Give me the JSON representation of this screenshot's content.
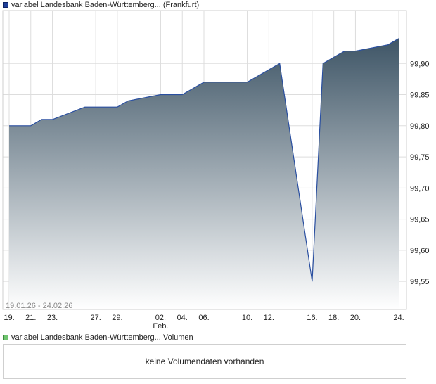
{
  "legend": {
    "price_label": "variabel Landesbank Baden-Württemberg... (Frankfurt)",
    "volume_label": "variabel Landesbank Baden-Württemberg... Volumen"
  },
  "volume": {
    "message": "keine Volumendaten vorhanden"
  },
  "colors": {
    "line": "#2a4fa0",
    "fill_top": "#3e5566",
    "fill_bottom": "#ffffff",
    "grid": "#dddddd"
  },
  "chart_data": {
    "type": "area",
    "title": "variabel Landesbank Baden-Württemberg... (Frankfurt)",
    "date_range": "19.01.26 - 24.02.26",
    "x": [
      "2026-01-19",
      "2026-01-20",
      "2026-01-21",
      "2026-01-22",
      "2026-01-23",
      "2026-01-26",
      "2026-01-27",
      "2026-01-28",
      "2026-01-29",
      "2026-01-30",
      "2026-02-02",
      "2026-02-03",
      "2026-02-04",
      "2026-02-05",
      "2026-02-06",
      "2026-02-09",
      "2026-02-10",
      "2026-02-11",
      "2026-02-12",
      "2026-02-13",
      "2026-02-16",
      "2026-02-17",
      "2026-02-18",
      "2026-02-19",
      "2026-02-20",
      "2026-02-23",
      "2026-02-24"
    ],
    "y": [
      99.8,
      99.8,
      99.8,
      99.81,
      99.81,
      99.83,
      99.83,
      99.83,
      99.83,
      99.84,
      99.85,
      99.85,
      99.85,
      99.86,
      99.87,
      99.87,
      99.87,
      99.88,
      99.89,
      99.9,
      99.55,
      99.9,
      99.91,
      99.92,
      99.92,
      99.93,
      99.94
    ],
    "x_ticks": [
      {
        "date": "2026-01-19",
        "label": "19."
      },
      {
        "date": "2026-01-21",
        "label": "21."
      },
      {
        "date": "2026-01-23",
        "label": "23."
      },
      {
        "date": "2026-01-27",
        "label": "27."
      },
      {
        "date": "2026-01-29",
        "label": "29."
      },
      {
        "date": "2026-02-02",
        "label": "02.",
        "sublabel": "Feb."
      },
      {
        "date": "2026-02-04",
        "label": "04."
      },
      {
        "date": "2026-02-06",
        "label": "06."
      },
      {
        "date": "2026-02-10",
        "label": "10."
      },
      {
        "date": "2026-02-12",
        "label": "12."
      },
      {
        "date": "2026-02-16",
        "label": "16."
      },
      {
        "date": "2026-02-18",
        "label": "18."
      },
      {
        "date": "2026-02-20",
        "label": "20."
      },
      {
        "date": "2026-02-24",
        "label": "24."
      }
    ],
    "y_ticks": [
      99.55,
      99.6,
      99.65,
      99.7,
      99.75,
      99.8,
      99.85,
      99.9
    ],
    "y_tick_labels": [
      "99,55",
      "99,60",
      "99,65",
      "99,70",
      "99,75",
      "99,80",
      "99,85",
      "99,90"
    ],
    "ylim": [
      99.505,
      99.985
    ],
    "y_axis_position": "right",
    "grid": true,
    "legend_position": "top-left"
  }
}
